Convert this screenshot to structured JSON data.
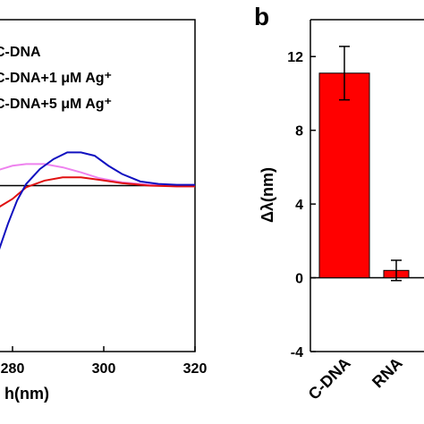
{
  "chart_data": [
    {
      "type": "line",
      "xlabel": "h(nm)",
      "xlim": [
        260,
        320
      ],
      "xticks": [
        280,
        300,
        320
      ],
      "ylim": [
        -10,
        10
      ],
      "zero_line": true,
      "series": [
        {
          "name": "C-DNA",
          "color": "#ee82ee",
          "x": [
            277,
            280,
            283,
            287,
            291,
            295,
            299,
            304,
            310,
            316,
            320
          ],
          "values": [
            0.95,
            1.2,
            1.3,
            1.3,
            1.1,
            0.8,
            0.45,
            0.2,
            0.05,
            -0.05,
            -0.05
          ]
        },
        {
          "name": "C-DNA+1 μM Ag⁺",
          "color": "#e01010",
          "x": [
            277,
            280,
            283,
            287,
            291,
            295,
            299,
            304,
            310,
            316,
            320
          ],
          "values": [
            -1.3,
            -0.8,
            -0.1,
            0.3,
            0.5,
            0.5,
            0.35,
            0.15,
            0,
            -0.05,
            -0.05
          ]
        },
        {
          "name": "C-DNA+5 μM Ag⁺",
          "color": "#1010c0",
          "x": [
            277,
            279,
            281,
            283,
            286,
            289,
            292,
            295,
            298,
            301,
            304,
            308,
            312,
            316,
            320
          ],
          "values": [
            -3.9,
            -2.3,
            -0.9,
            0.1,
            1.0,
            1.6,
            2.0,
            2.0,
            1.8,
            1.2,
            0.7,
            0.25,
            0.1,
            0.05,
            0.05
          ]
        }
      ]
    },
    {
      "type": "bar",
      "panel_label": "b",
      "ylabel": "Δλ(nm)",
      "categories": [
        "C-DNA",
        "RNA"
      ],
      "values": [
        11.1,
        0.4
      ],
      "errors": [
        1.45,
        0.55
      ],
      "color": "#ff0000",
      "ylim": [
        -4,
        14
      ],
      "yticks": [
        -4,
        0,
        4,
        8,
        12
      ]
    }
  ]
}
